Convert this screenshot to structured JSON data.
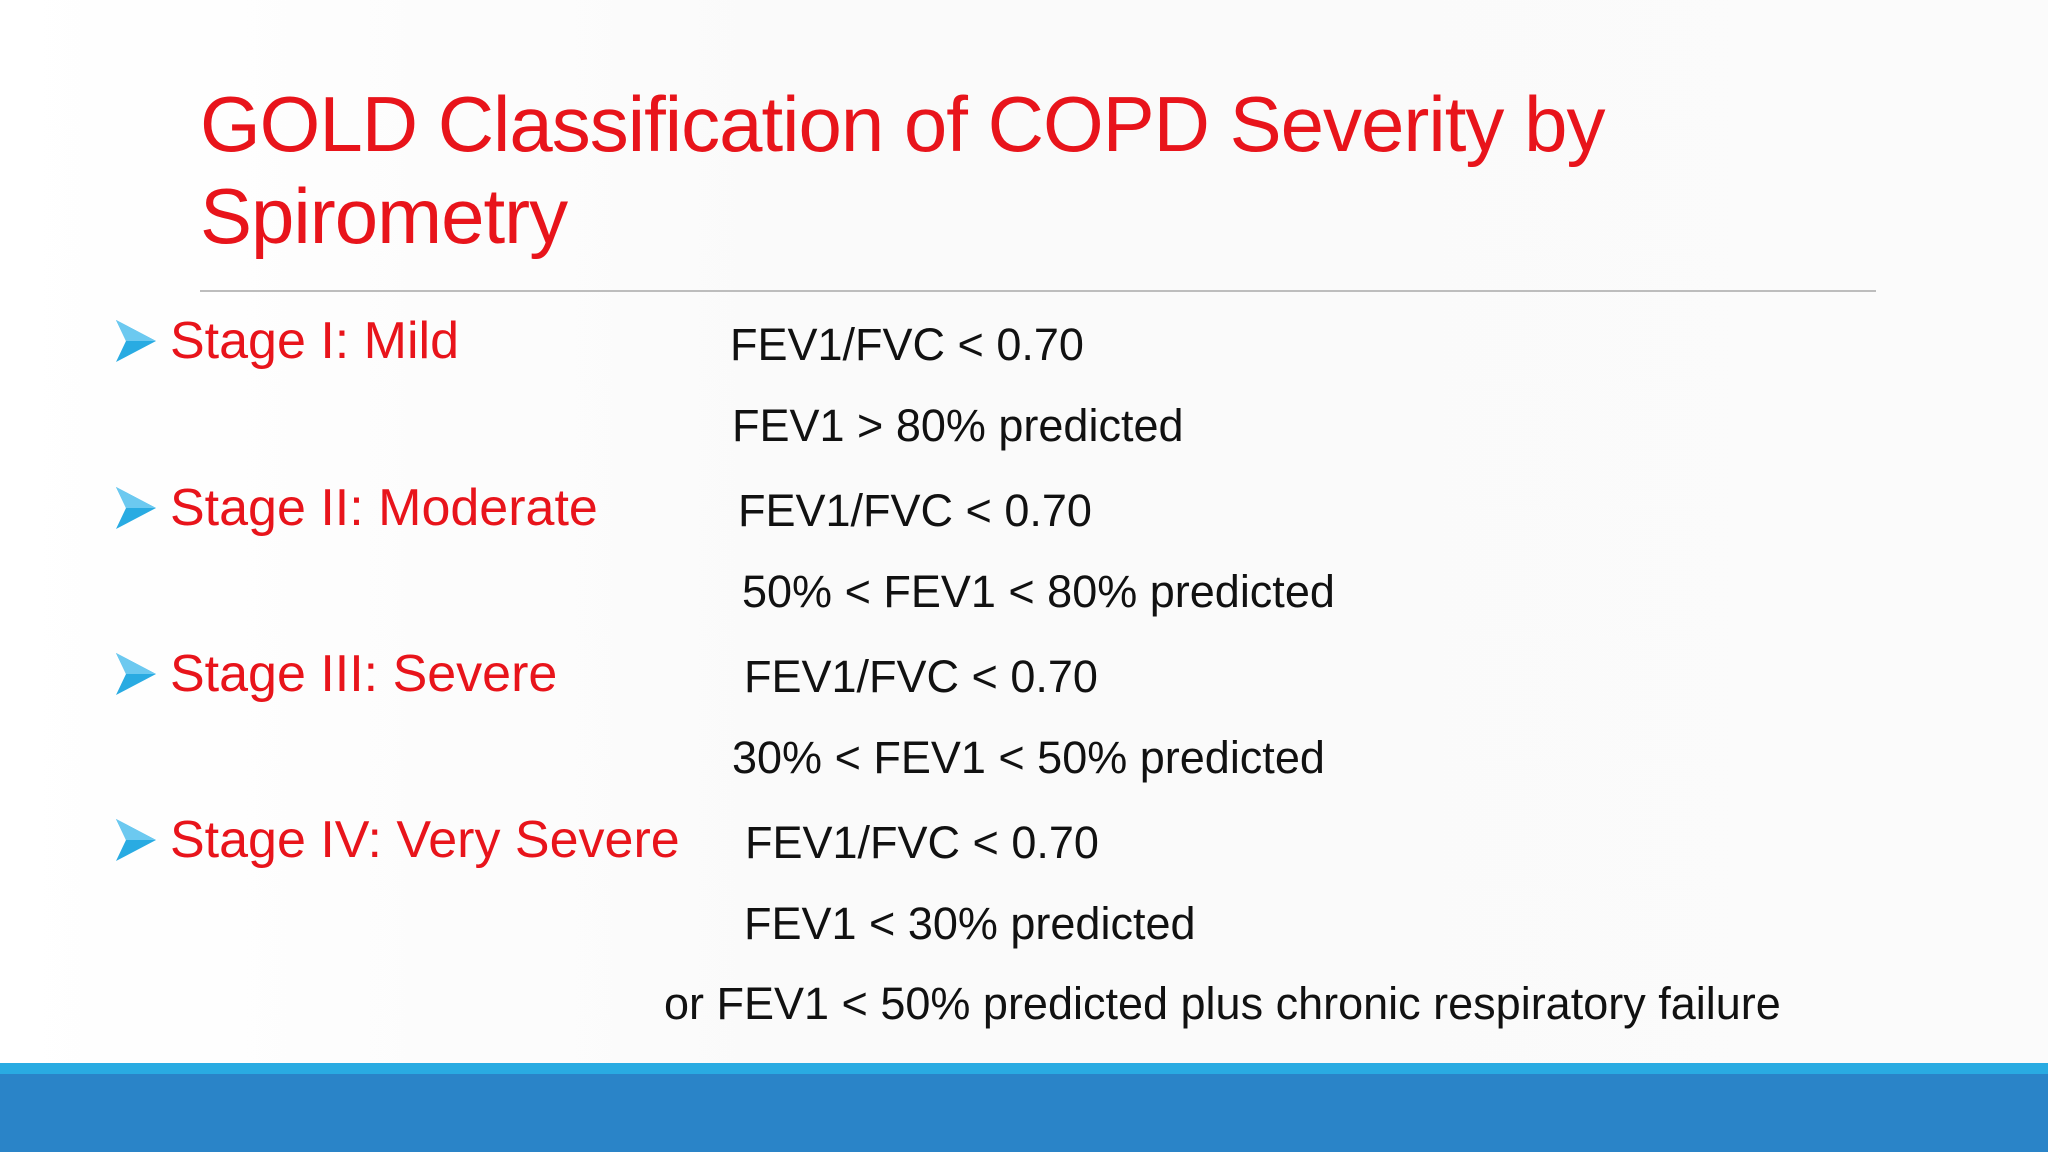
{
  "slide": {
    "title": "GOLD  Classification of COPD Severity by Spirometry",
    "stages": [
      {
        "label": "Stage I: Mild",
        "criteria": [
          "FEV1/FVC < 0.70",
          "FEV1 > 80% predicted"
        ]
      },
      {
        "label": "Stage II: Moderate",
        "criteria": [
          "FEV1/FVC < 0.70",
          "50% < FEV1 < 80% predicted"
        ]
      },
      {
        "label": "Stage III: Severe",
        "criteria": [
          "FEV1/FVC < 0.70",
          "30% < FEV1 < 50% predicted"
        ]
      },
      {
        "label": "Stage IV: Very Severe",
        "criteria": [
          "FEV1/FVC < 0.70",
          "FEV1 < 30% predicted",
          "or FEV1 < 50% predicted plus chronic respiratory failure"
        ]
      }
    ]
  },
  "icons": {
    "bullet": "arrowhead-bullet-icon"
  },
  "colors": {
    "title": "#e8141b",
    "stage_label": "#e8141b",
    "body_text": "#111111",
    "bullet": "#29abe2",
    "footer_bar": "#2a84c8",
    "footer_accent": "#29abe2",
    "rule": "#bdbdbd"
  }
}
